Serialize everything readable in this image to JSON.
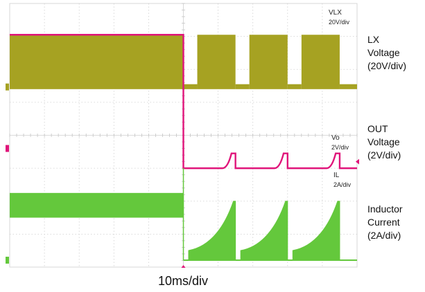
{
  "chart_data": {
    "type": "line",
    "x_per_div": "10ms/div",
    "grid": true,
    "channels": [
      {
        "name": "LX",
        "scope_label": "VLX",
        "scope_scale": "20V/div",
        "side_label": "LX\nVoltage\n(20V/div)",
        "color": "#a6a222",
        "segments": [
          {
            "t_start": 0.0,
            "t_end": 50.0,
            "state": "switching"
          },
          {
            "t_start": 50.0,
            "t_end": 54.0,
            "state": "off"
          },
          {
            "t_start": 54.0,
            "t_end": 65.0,
            "state": "switching"
          },
          {
            "t_start": 65.0,
            "t_end": 69.0,
            "state": "off"
          },
          {
            "t_start": 69.0,
            "t_end": 80.0,
            "state": "switching"
          },
          {
            "t_start": 80.0,
            "t_end": 84.0,
            "state": "off"
          },
          {
            "t_start": 84.0,
            "t_end": 95.0,
            "state": "switching"
          },
          {
            "t_start": 95.0,
            "t_end": 100.0,
            "state": "off"
          }
        ]
      },
      {
        "name": "OUT",
        "scope_label": "Vo",
        "scope_scale": "2V/div",
        "side_label": "OUT\nVoltage\n(2V/div)",
        "color": "#e0147a",
        "description": "Steady level before the fault, then drops and recovers in repeating hiccup cycles",
        "levels_div": {
          "before": 3.05,
          "after_low": -1.0,
          "after_peak": -0.55
        }
      },
      {
        "name": "IL",
        "scope_label": "IL",
        "scope_scale": "2A/div",
        "side_label": "Inductor\nCurrent\n(2A/div)",
        "color": "#64c83c",
        "description": "Steady ripple band before the fault, then current ramps up each hiccup cycle",
        "levels_div": {
          "band_top": 1.75,
          "band_bottom": 1.0,
          "peak": 2.0
        }
      }
    ],
    "xlabel": "10ms/div"
  }
}
